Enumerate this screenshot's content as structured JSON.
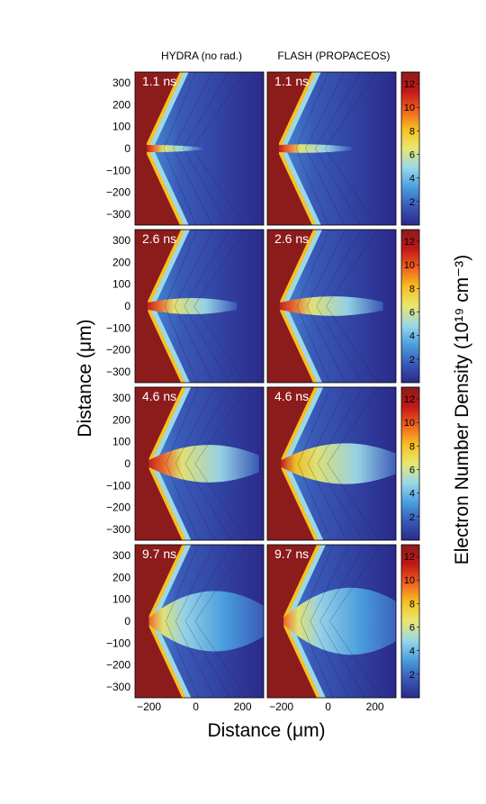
{
  "chart_data": {
    "type": "heatmap",
    "column_titles": [
      "HYDRA (no rad.)",
      "FLASH (PROPACEOS)"
    ],
    "row_times": [
      "1.1 ns",
      "2.6 ns",
      "4.6 ns",
      "9.7 ns"
    ],
    "xlabel": "Distance (μm)",
    "ylabel": "Distance (μm)",
    "colorbar_label": "Electron Number Density (10¹⁹ cm⁻³)",
    "xlim": [
      -260,
      290
    ],
    "ylim": [
      -350,
      350
    ],
    "xticks": [
      -200,
      0,
      200
    ],
    "xtick_labels": [
      "−200",
      "0",
      "200"
    ],
    "yticks": [
      300,
      200,
      100,
      0,
      -100,
      -200,
      -300
    ],
    "ytick_labels": [
      "300",
      "200",
      "100",
      "0",
      "−100",
      "−200",
      "−300"
    ],
    "colorbar_range": [
      0,
      13
    ],
    "colorbar_ticks": [
      12,
      10,
      8,
      6,
      4,
      2
    ],
    "colorbar_tick_labels": [
      "12",
      "10",
      "8",
      "6",
      "4",
      "2"
    ],
    "colormap": [
      "#2a2a8a",
      "#3a5ab8",
      "#4aa0e0",
      "#9ad8e8",
      "#e8e870",
      "#f8c020",
      "#f06020",
      "#c01818",
      "#8c1c1c"
    ],
    "target_color": "#8c1c1c",
    "background_color": "#3b3f9a",
    "panels": [
      {
        "code": "HYDRA",
        "time_ns": 1.1,
        "jet_length_um": 240,
        "jet_halfwidth_um": 14,
        "peak_density": 12,
        "wall_tip_x_um": -210
      },
      {
        "code": "FLASH",
        "time_ns": 1.1,
        "jet_length_um": 310,
        "jet_halfwidth_um": 20,
        "peak_density": 12,
        "wall_tip_x_um": -210
      },
      {
        "code": "HYDRA",
        "time_ns": 2.6,
        "jet_length_um": 380,
        "jet_halfwidth_um": 45,
        "peak_density": 12,
        "wall_tip_x_um": -205
      },
      {
        "code": "FLASH",
        "time_ns": 2.6,
        "jet_length_um": 440,
        "jet_halfwidth_um": 55,
        "peak_density": 12,
        "wall_tip_x_um": -205
      },
      {
        "code": "HYDRA",
        "time_ns": 4.6,
        "jet_length_um": 470,
        "jet_halfwidth_um": 110,
        "peak_density": 12,
        "wall_tip_x_um": -200
      },
      {
        "code": "FLASH",
        "time_ns": 4.6,
        "jet_length_um": 500,
        "jet_halfwidth_um": 120,
        "peak_density": 11,
        "wall_tip_x_um": -200
      },
      {
        "code": "HYDRA",
        "time_ns": 9.7,
        "jet_length_um": 500,
        "jet_halfwidth_um": 180,
        "peak_density": 9,
        "wall_tip_x_um": -200
      },
      {
        "code": "FLASH",
        "time_ns": 9.7,
        "jet_length_um": 510,
        "jet_halfwidth_um": 200,
        "peak_density": 9,
        "wall_tip_x_um": -190
      }
    ]
  }
}
